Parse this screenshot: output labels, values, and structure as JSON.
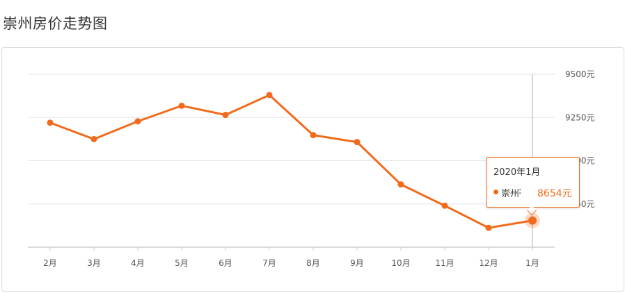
{
  "page": {
    "title": "崇州房价走势图"
  },
  "chart_data": {
    "type": "line",
    "categories": [
      "2月",
      "3月",
      "4月",
      "5月",
      "6月",
      "7月",
      "8月",
      "9月",
      "10月",
      "11月",
      "12月",
      "1月"
    ],
    "series": [
      {
        "name": "崇州",
        "values": [
          9220,
          9125,
          9228,
          9318,
          9265,
          9380,
          9148,
          9108,
          8863,
          8740,
          8612,
          8654
        ]
      }
    ],
    "y_ticks": [
      8750,
      9000,
      9250,
      9500
    ],
    "y_tick_labels": [
      "8750元",
      "9000元",
      "9250元",
      "9500元"
    ],
    "ylim": [
      8500,
      9500
    ],
    "y_axis_side": "right",
    "grid": true,
    "line_color": "#f26b1d",
    "highlighted_index": 11
  },
  "tooltip": {
    "title": "2020年1月",
    "series_name": "崇州",
    "colon": ":",
    "value": "8654元"
  }
}
